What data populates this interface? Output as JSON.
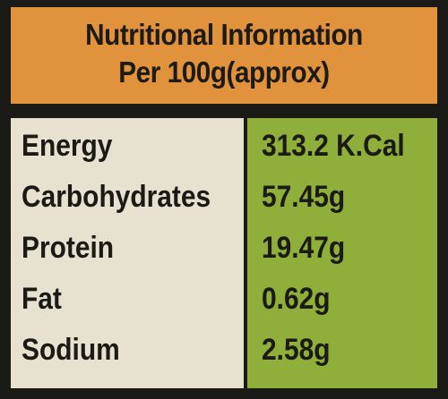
{
  "header": {
    "title": "Nutritional Information",
    "subtitle": "Per 100g(approx)"
  },
  "table": {
    "rows": [
      [
        "Energy",
        "313.2 K.Cal"
      ],
      [
        "Carbohydrates",
        "57.45g"
      ],
      [
        "Protein",
        "19.47g"
      ],
      [
        "Fat",
        "0.62g"
      ],
      [
        "Sodium",
        "2.58g"
      ]
    ]
  }
}
